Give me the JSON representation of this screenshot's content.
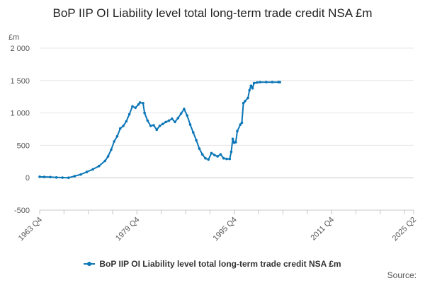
{
  "chart_data": {
    "type": "line",
    "title": "BoP IIP OI Liability level total long-term trade credit NSA £m",
    "ylabel": "£m",
    "xlabel": "",
    "ylim": [
      -500,
      2000
    ],
    "yticks": [
      -500,
      0,
      500,
      1000,
      1500,
      2000
    ],
    "ytick_labels": [
      "-500",
      "0",
      "500",
      "1 000",
      "1 500",
      "2 000"
    ],
    "xlim": [
      1963.75,
      2025.25
    ],
    "xticks": [
      1963.75,
      1979.75,
      1995.75,
      2011.75,
      2025.25
    ],
    "xtick_labels": [
      "1963 Q4",
      "1979 Q4",
      "1995 Q4",
      "2011 Q4",
      "2025 Q2"
    ],
    "legend": "bottom",
    "source_label": "Source:",
    "series": [
      {
        "name": "BoP IIP OI Liability level total long-term trade credit NSA £m",
        "color": "#0b76b7",
        "points": [
          [
            1963.75,
            15
          ],
          [
            1964.5,
            12
          ],
          [
            1965.5,
            10
          ],
          [
            1966.5,
            5
          ],
          [
            1967.5,
            2
          ],
          [
            1968.5,
            0
          ],
          [
            1969.5,
            25
          ],
          [
            1970.5,
            50
          ],
          [
            1971.5,
            90
          ],
          [
            1972.5,
            130
          ],
          [
            1973.5,
            180
          ],
          [
            1974.5,
            260
          ],
          [
            1975.0,
            330
          ],
          [
            1975.5,
            430
          ],
          [
            1976.0,
            560
          ],
          [
            1976.5,
            640
          ],
          [
            1977.0,
            760
          ],
          [
            1977.5,
            800
          ],
          [
            1978.0,
            870
          ],
          [
            1978.5,
            980
          ],
          [
            1979.0,
            1100
          ],
          [
            1979.5,
            1080
          ],
          [
            1980.0,
            1130
          ],
          [
            1980.25,
            1160
          ],
          [
            1980.75,
            1150
          ],
          [
            1981.0,
            1000
          ],
          [
            1981.5,
            880
          ],
          [
            1982.0,
            800
          ],
          [
            1982.5,
            810
          ],
          [
            1983.0,
            740
          ],
          [
            1983.5,
            800
          ],
          [
            1984.0,
            830
          ],
          [
            1984.5,
            860
          ],
          [
            1985.0,
            880
          ],
          [
            1985.5,
            910
          ],
          [
            1986.0,
            860
          ],
          [
            1986.5,
            920
          ],
          [
            1987.0,
            990
          ],
          [
            1987.5,
            1060
          ],
          [
            1988.0,
            960
          ],
          [
            1988.5,
            820
          ],
          [
            1989.0,
            700
          ],
          [
            1989.5,
            580
          ],
          [
            1990.0,
            450
          ],
          [
            1990.5,
            360
          ],
          [
            1991.0,
            300
          ],
          [
            1991.5,
            280
          ],
          [
            1992.0,
            380
          ],
          [
            1992.5,
            350
          ],
          [
            1993.0,
            330
          ],
          [
            1993.5,
            360
          ],
          [
            1994.0,
            300
          ],
          [
            1994.5,
            290
          ],
          [
            1995.0,
            290
          ],
          [
            1995.25,
            400
          ],
          [
            1995.5,
            600
          ],
          [
            1995.75,
            540
          ],
          [
            1996.0,
            550
          ],
          [
            1996.25,
            720
          ],
          [
            1996.75,
            820
          ],
          [
            1997.0,
            850
          ],
          [
            1997.25,
            1150
          ],
          [
            1997.5,
            1180
          ],
          [
            1998.0,
            1230
          ],
          [
            1998.25,
            1350
          ],
          [
            1998.5,
            1420
          ],
          [
            1998.75,
            1380
          ],
          [
            1999.0,
            1460
          ],
          [
            1999.5,
            1470
          ],
          [
            2000.0,
            1475
          ],
          [
            2001.0,
            1475
          ],
          [
            2002.0,
            1475
          ],
          [
            2003.0,
            1475
          ],
          [
            2003.25,
            1475
          ]
        ]
      }
    ]
  }
}
